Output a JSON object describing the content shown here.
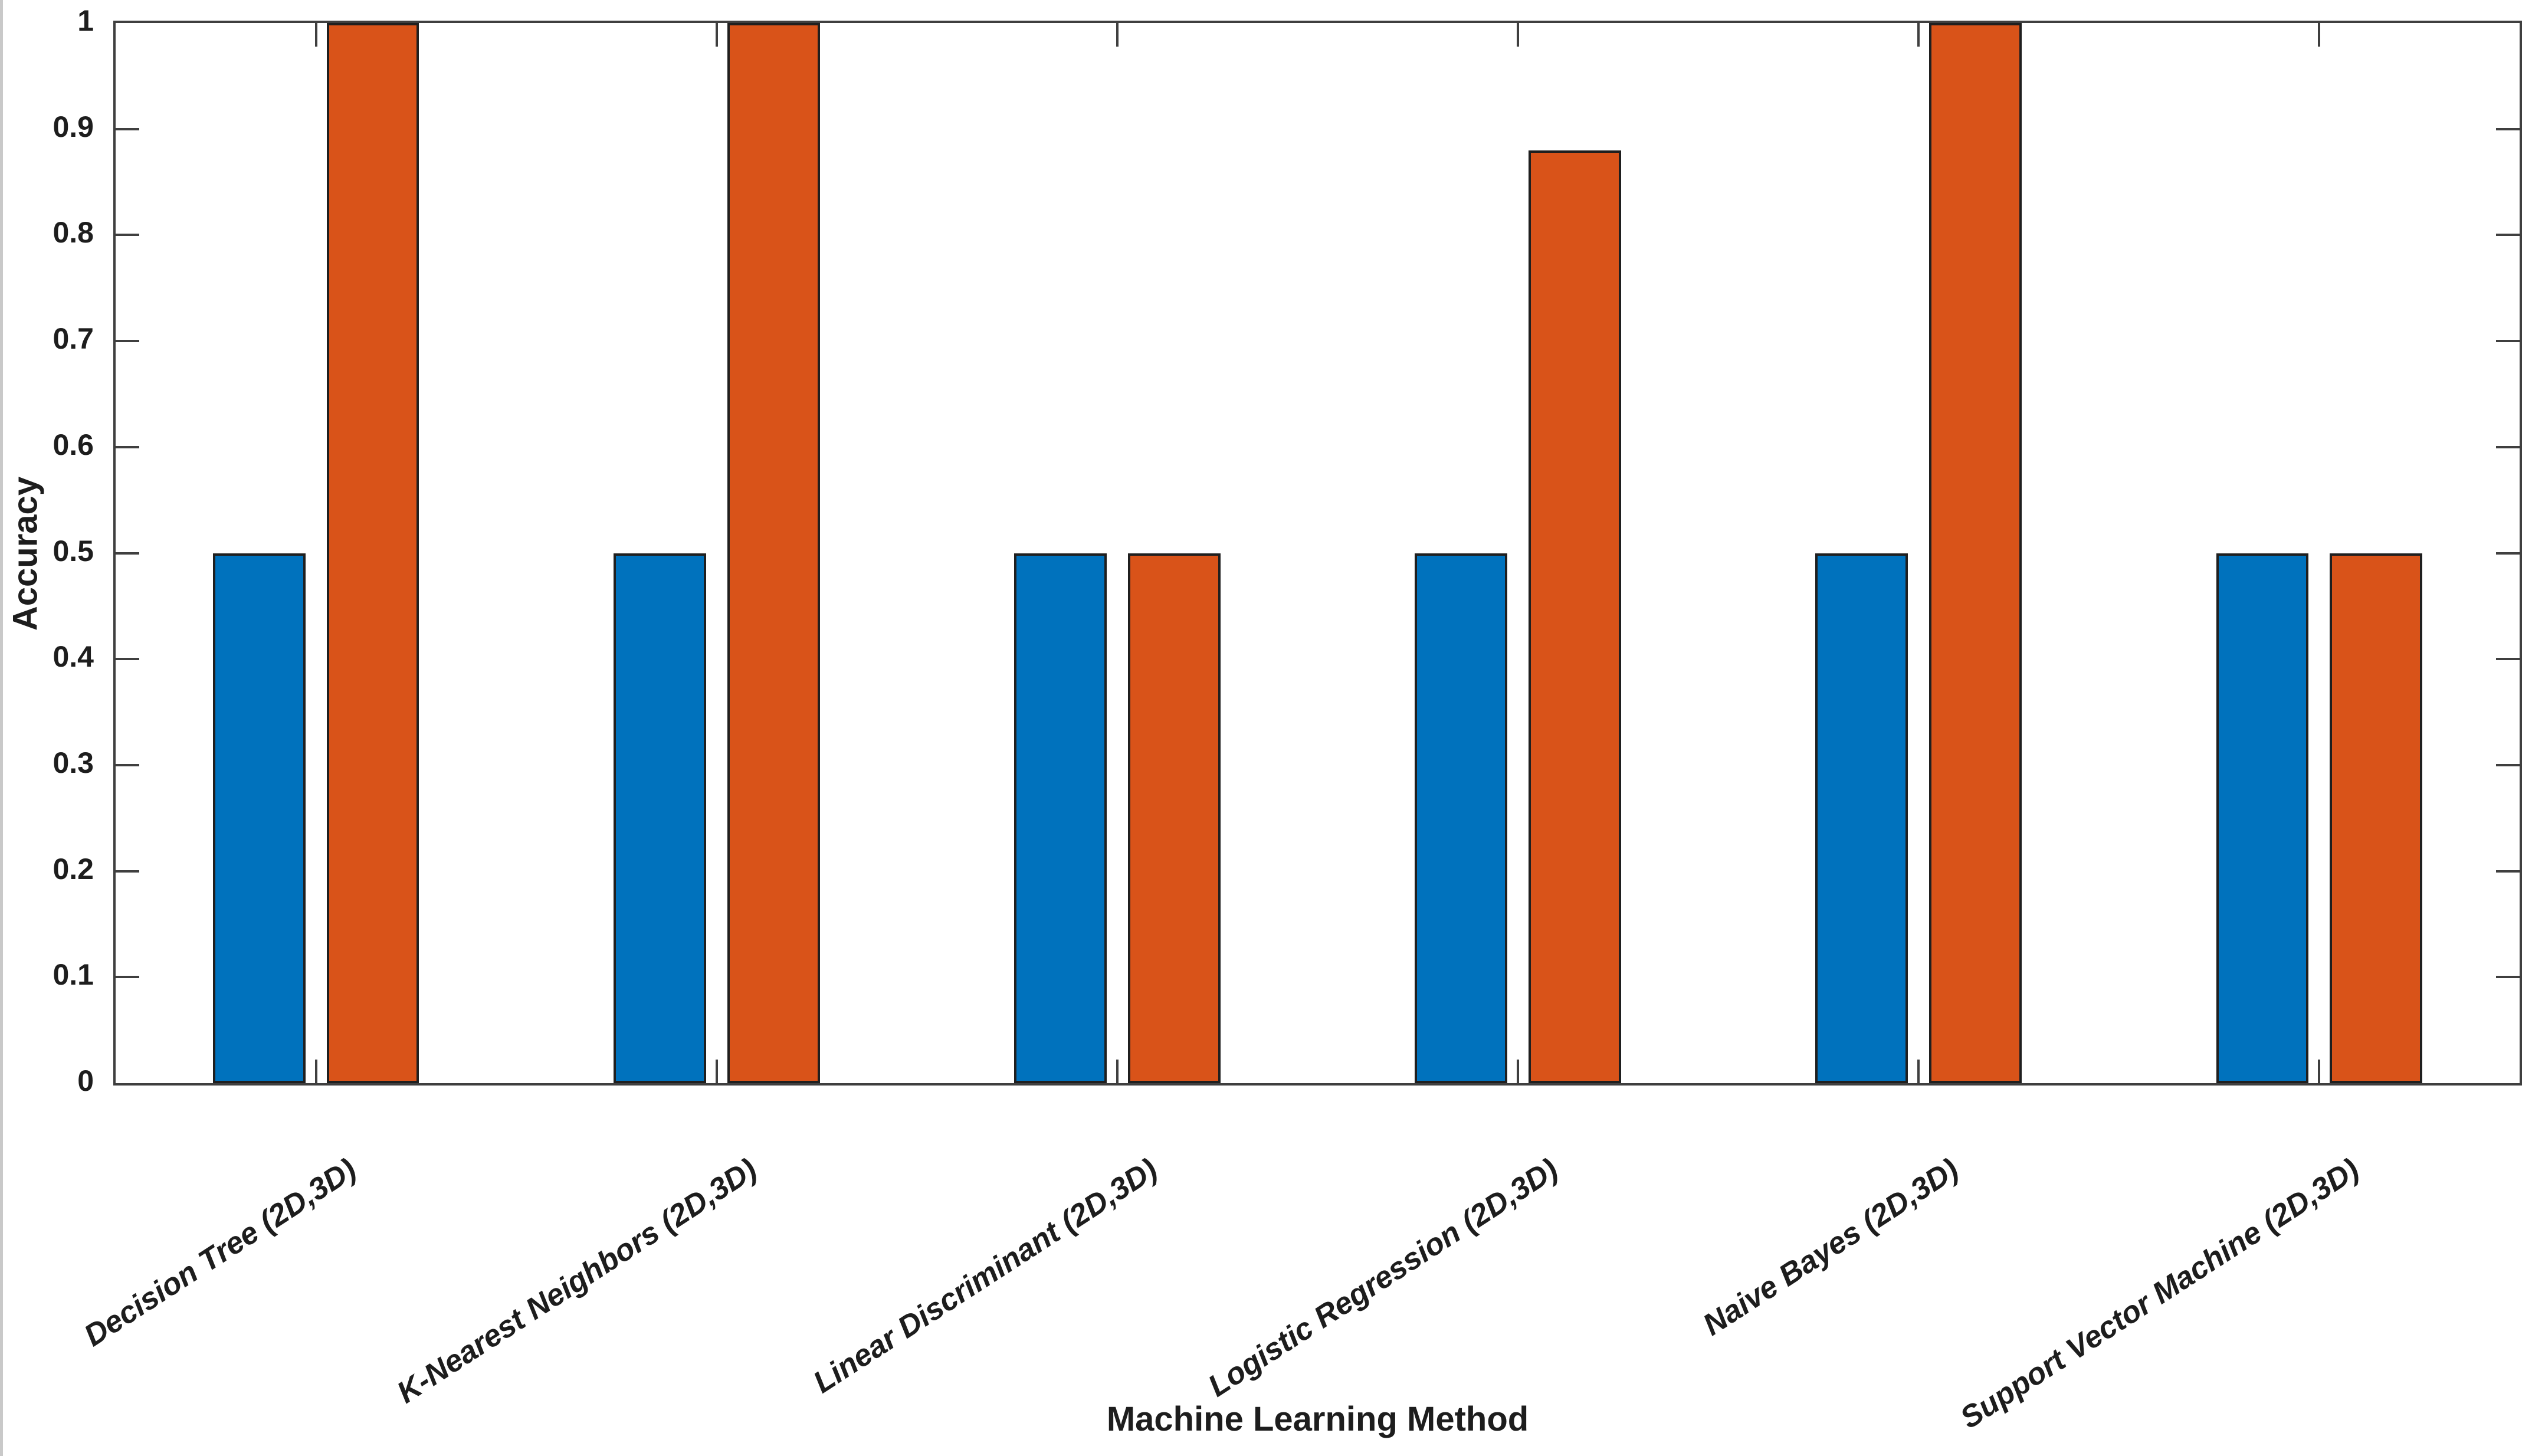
{
  "chart_data": {
    "type": "bar",
    "title": "",
    "xlabel": "Machine Learning Method",
    "ylabel": "Accuracy",
    "categories": [
      "Decision Tree (2D,3D)",
      "K-Nearest Neighbors (2D,3D)",
      "Linear Discriminant (2D,3D)",
      "Logistic Regression (2D,3D)",
      "Naive Bayes (2D,3D)",
      "Support Vector Machine (2D,3D)"
    ],
    "series": [
      {
        "name": "2D",
        "color": "#0072BD",
        "values": [
          0.5,
          0.5,
          0.5,
          0.5,
          0.5,
          0.5
        ]
      },
      {
        "name": "3D",
        "color": "#D95319",
        "values": [
          1.0,
          1.0,
          0.5,
          0.88,
          1.0,
          0.5
        ]
      }
    ],
    "ylim": [
      0,
      1
    ],
    "yticks": [
      0,
      0.1,
      0.2,
      0.3,
      0.4,
      0.5,
      0.6,
      0.7,
      0.8,
      0.9,
      1
    ],
    "ytick_labels": [
      "0",
      "0.1",
      "0.2",
      "0.3",
      "0.4",
      "0.5",
      "0.6",
      "0.7",
      "0.8",
      "0.9",
      "1"
    ],
    "legend": "none",
    "grid": false,
    "bar_edge_color": "#1f1f1f",
    "axis_color": "#3f3f3f",
    "tick_direction": "in",
    "box": true
  }
}
